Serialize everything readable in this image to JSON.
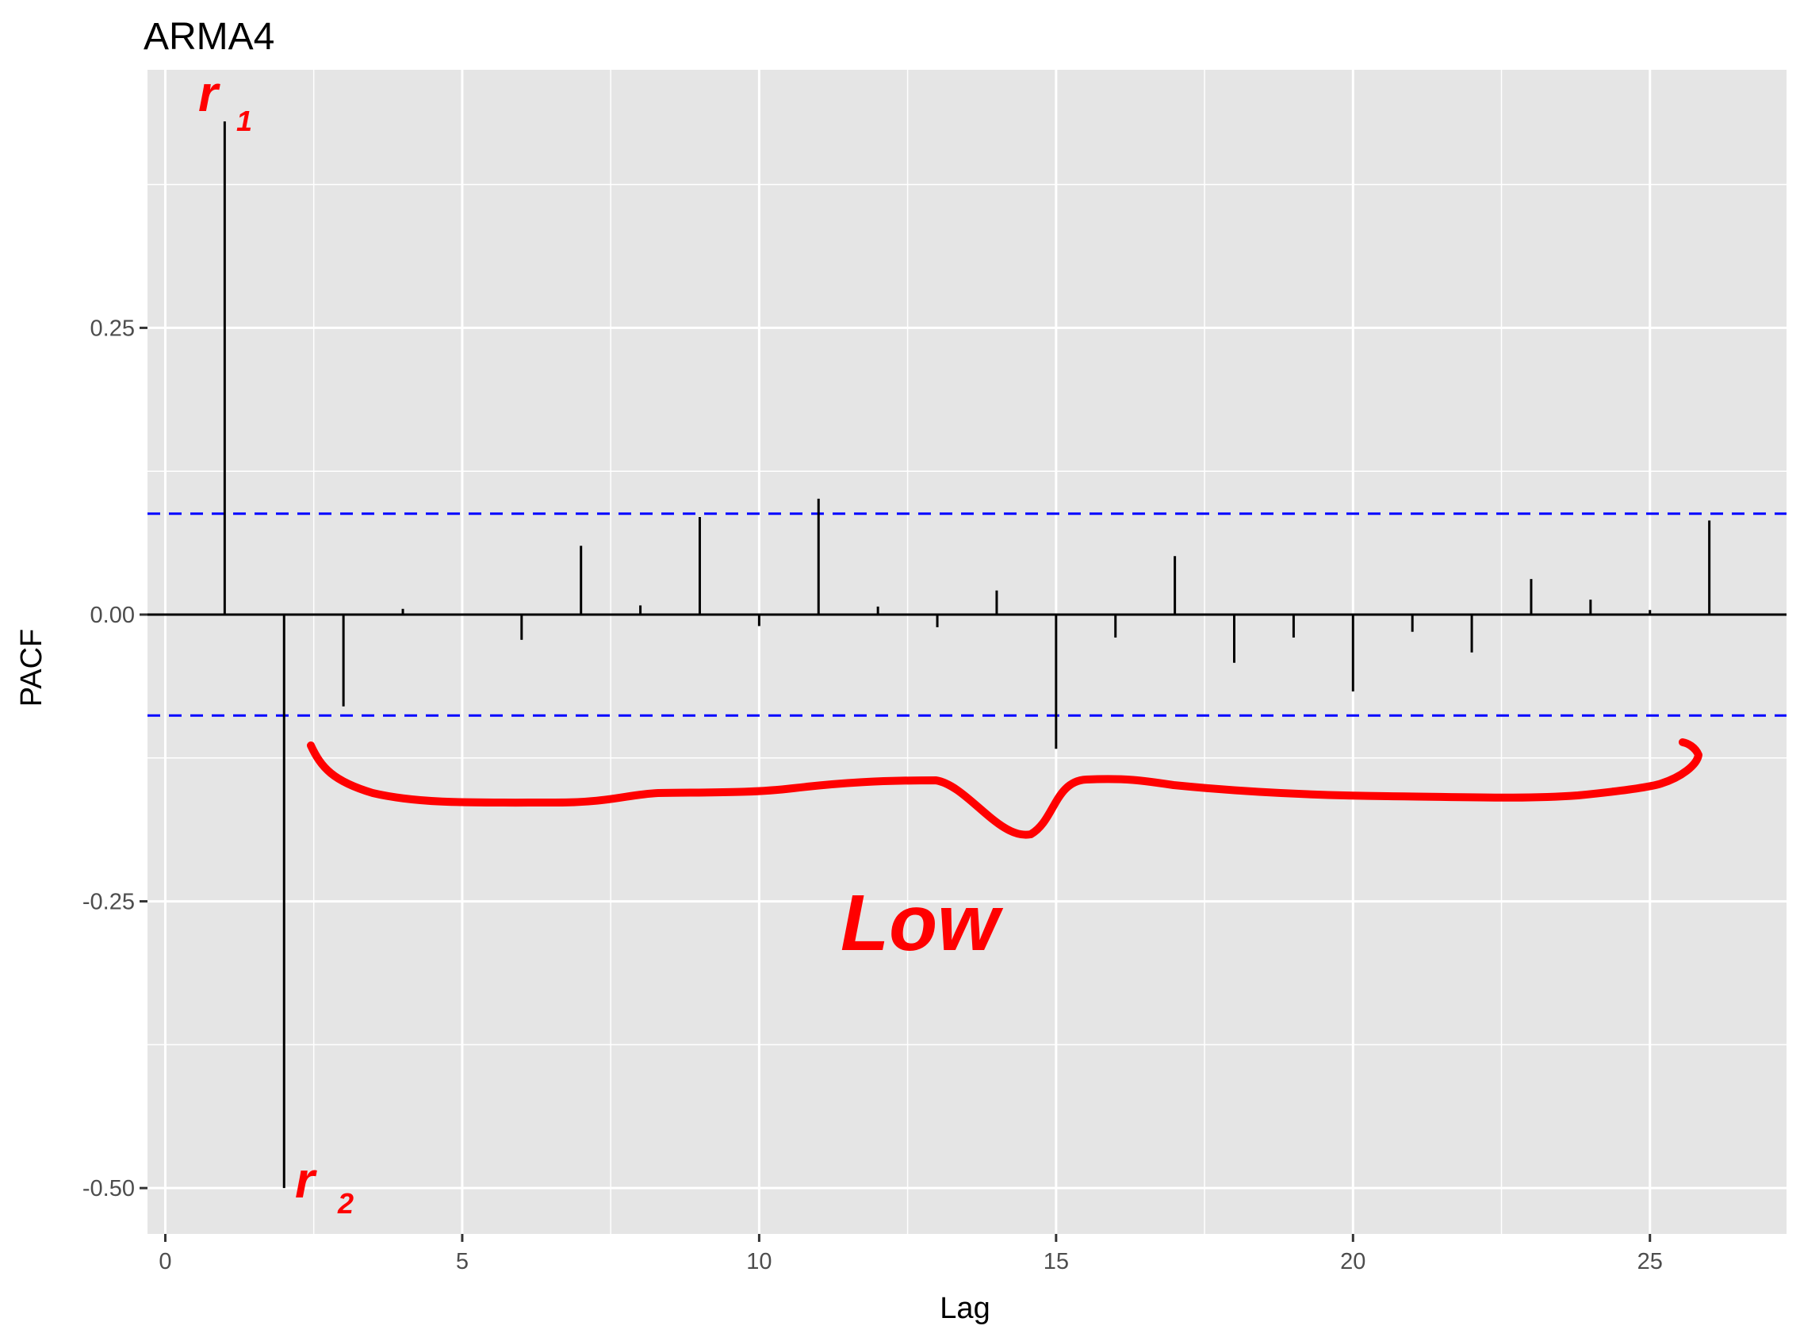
{
  "chart_data": {
    "type": "bar",
    "title": "ARMA4",
    "xlabel": "Lag",
    "ylabel": "PACF",
    "xlim": [
      -0.3,
      27.3
    ],
    "ylim": [
      -0.54,
      0.475
    ],
    "x_ticks": [
      0,
      5,
      10,
      15,
      20,
      25
    ],
    "x_tick_labels": [
      "0",
      "5",
      "10",
      "15",
      "20",
      "25"
    ],
    "y_ticks": [
      -0.5,
      -0.25,
      0,
      0.25
    ],
    "y_tick_labels": [
      "-0.50",
      "-0.25",
      "0.00",
      "0.25"
    ],
    "grid": true,
    "background": "#e5e5e5",
    "gridline_color": "#ffffff",
    "bar_color": "#000000",
    "ci_color": "#0000ff",
    "confidence_band": [
      -0.088,
      0.088
    ],
    "x": [
      1,
      2,
      3,
      4,
      5,
      6,
      7,
      8,
      9,
      10,
      11,
      12,
      13,
      14,
      15,
      16,
      17,
      18,
      19,
      20,
      21,
      22,
      23,
      24,
      25,
      26
    ],
    "values": [
      0.43,
      -0.5,
      -0.08,
      0.005,
      0.0,
      -0.022,
      0.06,
      0.008,
      0.085,
      -0.01,
      0.101,
      0.007,
      -0.011,
      0.021,
      -0.117,
      -0.02,
      0.051,
      -0.042,
      -0.02,
      -0.067,
      -0.015,
      -0.033,
      0.031,
      0.013,
      0.004,
      0.082
    ]
  },
  "annotations": {
    "color": "#ff0000",
    "r1_text": "r",
    "r1_sub": "1",
    "r2_text": "r",
    "r2_sub": "2",
    "low_text": "Low"
  }
}
